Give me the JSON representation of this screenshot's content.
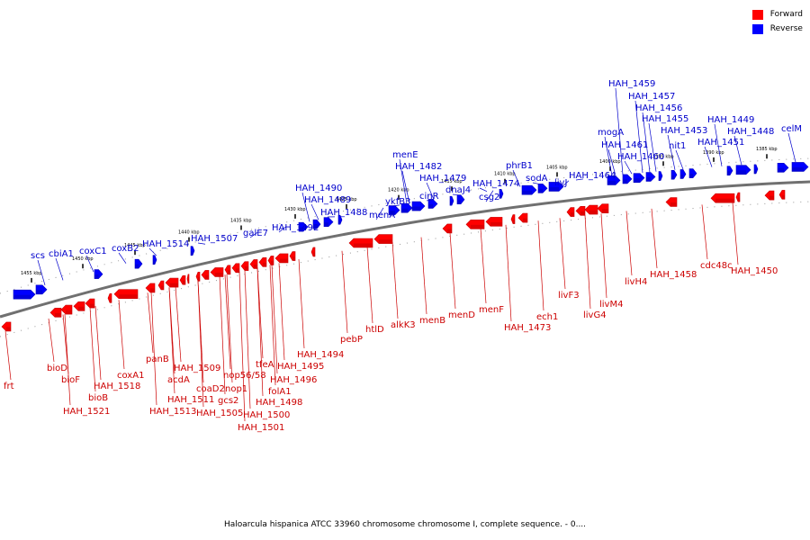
{
  "title": "Haloarcula hispanica ATCC 33960 chromosome chromosome I, complete sequence. - 0....",
  "legend": [
    {
      "label": "Forward",
      "color": "#ff0000"
    },
    {
      "label": "Reverse",
      "color": "#0000ff"
    }
  ],
  "colors": {
    "forward": "#ff0000",
    "forward_dark": "#c80000",
    "forward_label": "#cc0000",
    "reverse": "#0000ff",
    "reverse_dark": "#0000c0",
    "reverse_label": "#0000cc",
    "backbone": "#707070"
  },
  "scale_ticks": [
    "1455 kbp",
    "1450 kbp",
    "1445 kbp",
    "1440 kbp",
    "1435 kbp",
    "1430 kbp",
    "1425 kbp",
    "1420 kbp",
    "1415 kbp",
    "1410 kbp",
    "1405 kbp",
    "1400 kbp",
    "1395 kbp",
    "1390 kbp",
    "1385 kbp"
  ],
  "reverse_genes": [
    "scs",
    "cbiA1",
    "coxC1",
    "coxB2",
    "HAH_1514",
    "HAH_1507",
    "galE7",
    "HAH_1492",
    "HAH_1490",
    "HAH_1489",
    "HAH_1488",
    "menA",
    "ykfB3",
    "menE",
    "HAH_1482",
    "cinR",
    "HAH_1479",
    "dnaJ4",
    "csg2",
    "HAH_1474",
    "phrB1",
    "sodA",
    "livJ",
    "HAH_1464",
    "mogA",
    "HAH_1461",
    "HAH_1460",
    "HAH_1459",
    "HAH_1457",
    "HAH_1456",
    "HAH_1455",
    "HAH_1453",
    "nit1",
    "HAH_1451",
    "HAH_1449",
    "HAH_1448",
    "celM"
  ],
  "forward_genes": [
    "frt",
    "bioD",
    "bioF",
    "bioB",
    "HAH_1521",
    "HAH_1518",
    "coxA1",
    "panB",
    "HAH_1509",
    "acdA",
    "HAH_1511",
    "HAH_1513",
    "coaD2",
    "nop1",
    "gcs2",
    "HAH_1505",
    "nop56/58",
    "tfeA",
    "folA1",
    "HAH_1495",
    "HAH_1496",
    "HAH_1498",
    "HAH_1500",
    "HAH_1501",
    "HAH_1494",
    "pebP",
    "htlD",
    "alkK3",
    "menB",
    "menD",
    "menF",
    "HAH_1473",
    "ech1",
    "livF3",
    "livG4",
    "livM4",
    "livH4",
    "HAH_1458",
    "cdc48c",
    "HAH_1450"
  ]
}
